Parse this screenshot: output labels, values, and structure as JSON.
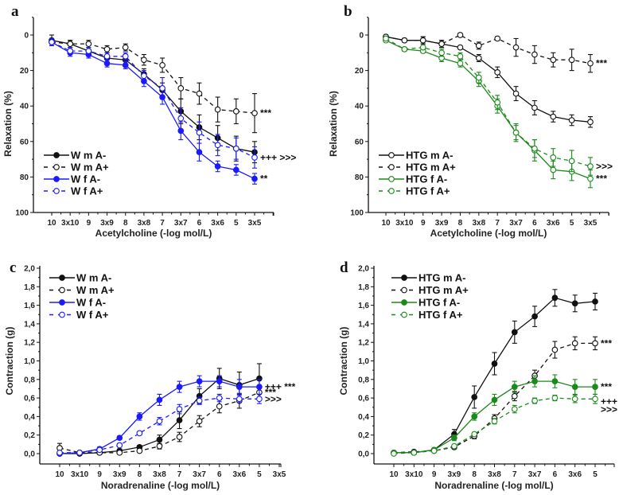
{
  "colors": {
    "black": "#111111",
    "blue": "#1a1aff",
    "green": "#1a8a1a"
  },
  "chart_data": [
    {
      "panel": "a",
      "type": "line",
      "xlabel": "Acetylcholine (-log mol/L)",
      "ylabel": "Relaxation (%)",
      "y_inverted": true,
      "ylim": [
        0,
        100
      ],
      "yticks": [
        "0",
        "20",
        "40",
        "60",
        "80",
        "100"
      ],
      "ytick_values": [
        0,
        20,
        40,
        60,
        80,
        100
      ],
      "categories": [
        "10",
        "3x10",
        "9",
        "3x9",
        "8",
        "3x8",
        "7",
        "3x7",
        "6",
        "3x6",
        "5",
        "3x5"
      ],
      "legend_position": "bottom-left",
      "series": [
        {
          "name": "W m A-",
          "color": "black",
          "dashed": false,
          "filled": true,
          "values": [
            3,
            5,
            9,
            13,
            14,
            22,
            31,
            43,
            52,
            58,
            64,
            66
          ],
          "errors": [
            3,
            2,
            2,
            3,
            3,
            3,
            4,
            7,
            7,
            7,
            7,
            6
          ]
        },
        {
          "name": "W m A+",
          "color": "black",
          "dashed": true,
          "filled": false,
          "values": [
            4,
            5,
            5,
            8,
            7,
            14,
            17,
            30,
            33,
            42,
            43,
            44
          ],
          "errors": [
            2,
            2,
            2,
            2,
            2,
            3,
            4,
            6,
            6,
            7,
            7,
            11
          ]
        },
        {
          "name": "W f A-",
          "color": "blue",
          "dashed": false,
          "filled": true,
          "values": [
            4,
            10,
            11,
            16,
            17,
            26,
            35,
            54,
            66,
            74,
            76,
            81
          ],
          "errors": [
            2,
            2,
            2,
            2,
            2,
            3,
            4,
            5,
            5,
            3,
            3,
            3
          ]
        },
        {
          "name": "W f A+",
          "color": "blue",
          "dashed": true,
          "filled": false,
          "values": [
            4,
            9,
            9,
            12,
            12,
            23,
            30,
            47,
            55,
            62,
            64,
            69
          ],
          "errors": [
            2,
            2,
            2,
            2,
            2,
            3,
            6,
            6,
            6,
            6,
            6,
            6
          ]
        }
      ],
      "annotations": [
        {
          "series": 1,
          "text": "***"
        },
        {
          "series": 0,
          "text": "+++ >>>",
          "dy": 7
        },
        {
          "series": 2,
          "text": "**"
        }
      ]
    },
    {
      "panel": "b",
      "type": "line",
      "xlabel": "Acetylcholine (-log mol/L)",
      "ylabel": "Relaxation (%)",
      "y_inverted": true,
      "ylim": [
        0,
        100
      ],
      "yticks": [
        "0",
        "20",
        "40",
        "60",
        "80",
        "100"
      ],
      "ytick_values": [
        0,
        20,
        40,
        60,
        80,
        100
      ],
      "categories": [
        "10",
        "3x10",
        "9",
        "3x9",
        "8",
        "3x8",
        "7",
        "3x7",
        "6",
        "3x6",
        "5",
        "3x5"
      ],
      "legend_position": "bottom-left",
      "series": [
        {
          "name": "HTG m A-",
          "color": "black",
          "dashed": false,
          "filled": false,
          "values": [
            1,
            3,
            3,
            5,
            7,
            13,
            21,
            33,
            41,
            46,
            48,
            49
          ],
          "errors": [
            1,
            1,
            2,
            2,
            1,
            2,
            3,
            4,
            4,
            3,
            3,
            3
          ]
        },
        {
          "name": "HTG m A+",
          "color": "black",
          "dashed": true,
          "filled": false,
          "values": [
            1,
            3,
            3,
            5,
            0,
            6,
            2,
            7,
            11,
            14,
            14,
            16
          ],
          "errors": [
            1,
            1,
            2,
            2,
            1,
            2,
            1,
            5,
            5,
            4,
            6,
            5
          ]
        },
        {
          "name": "HTG f A-",
          "color": "green",
          "dashed": false,
          "filled": false,
          "values": [
            3,
            8,
            9,
            13,
            16,
            26,
            40,
            55,
            65,
            76,
            77,
            81
          ],
          "errors": [
            1,
            1,
            1,
            2,
            2,
            3,
            4,
            5,
            6,
            5,
            5,
            5
          ]
        },
        {
          "name": "HTG f A+",
          "color": "green",
          "dashed": true,
          "filled": false,
          "values": [
            2,
            8,
            7,
            10,
            12,
            24,
            38,
            55,
            64,
            69,
            71,
            74
          ],
          "errors": [
            1,
            1,
            1,
            2,
            2,
            3,
            4,
            4,
            5,
            5,
            6,
            5
          ]
        }
      ],
      "annotations": [
        {
          "series": 1,
          "text": "***"
        },
        {
          "series": 3,
          "text": ">>>"
        },
        {
          "series": 2,
          "text": "***",
          "small": true
        }
      ]
    },
    {
      "panel": "c",
      "type": "line",
      "xlabel": "Noradrenaline (-log mol/L)",
      "ylabel": "Contraction (g)",
      "y_inverted": false,
      "ylim": [
        0,
        2.0
      ],
      "yticks": [
        "0,0",
        "0,2",
        "0,4",
        "0,6",
        "0,8",
        "1,0",
        "1,2",
        "1,4",
        "1,6",
        "1,8",
        "2,0"
      ],
      "ytick_values": [
        0,
        0.2,
        0.4,
        0.6,
        0.8,
        1.0,
        1.2,
        1.4,
        1.6,
        1.8,
        2.0
      ],
      "categories": [
        "10",
        "3x10",
        "9",
        "3x9",
        "8",
        "3x8",
        "7",
        "3x7",
        "6",
        "3x6",
        "5",
        "3x5"
      ],
      "legend_position": "top-left",
      "series": [
        {
          "name": "W m A-",
          "color": "black",
          "dashed": false,
          "filled": true,
          "values": [
            0.0,
            0.0,
            0.01,
            0.03,
            0.07,
            0.15,
            0.36,
            0.62,
            0.81,
            0.74,
            0.81,
            null
          ],
          "errors": [
            0.01,
            0.01,
            0.01,
            0.02,
            0.02,
            0.05,
            0.09,
            0.08,
            0.11,
            0.14,
            0.16,
            null
          ]
        },
        {
          "name": "W m A+",
          "color": "black",
          "dashed": true,
          "filled": false,
          "values": [
            0.06,
            0.01,
            0.01,
            0.01,
            0.03,
            0.08,
            0.18,
            0.35,
            0.51,
            0.57,
            0.66,
            null
          ],
          "errors": [
            0.05,
            0.01,
            0.01,
            0.01,
            0.01,
            0.03,
            0.05,
            0.06,
            0.07,
            0.08,
            0.07,
            null
          ]
        },
        {
          "name": "W f A-",
          "color": "blue",
          "dashed": false,
          "filled": true,
          "values": [
            0.0,
            0.01,
            0.05,
            0.17,
            0.4,
            0.58,
            0.72,
            0.78,
            0.78,
            0.72,
            0.72,
            null
          ],
          "errors": [
            0.01,
            0.01,
            0.02,
            0.02,
            0.04,
            0.06,
            0.06,
            0.06,
            0.06,
            0.08,
            0.08,
            null
          ]
        },
        {
          "name": "W f A+",
          "color": "blue",
          "dashed": true,
          "filled": false,
          "values": [
            0.01,
            0.01,
            0.04,
            0.09,
            0.22,
            0.35,
            0.48,
            0.57,
            0.6,
            0.59,
            0.59,
            null
          ],
          "errors": [
            0.01,
            0.01,
            0.01,
            0.02,
            0.02,
            0.04,
            0.05,
            0.04,
            0.04,
            0.04,
            0.05,
            null
          ]
        }
      ],
      "annotations": [
        {
          "series": 2,
          "text": "+++ ***"
        },
        {
          "series": 1,
          "text": "***"
        },
        {
          "series": 3,
          "text": ">>>"
        }
      ]
    },
    {
      "panel": "d",
      "type": "line",
      "xlabel": "Noradrenaline (-log mol/L)",
      "ylabel": "Contraction (g)",
      "y_inverted": false,
      "ylim": [
        0,
        2.0
      ],
      "yticks": [
        "0,0",
        "0,2",
        "0,4",
        "0,6",
        "0,8",
        "1,0",
        "1,2",
        "1,4",
        "1,6",
        "1,8",
        "2,0"
      ],
      "ytick_values": [
        0,
        0.2,
        0.4,
        0.6,
        0.8,
        1.0,
        1.2,
        1.4,
        1.6,
        1.8,
        2.0
      ],
      "categories": [
        "10",
        "3x10",
        "9",
        "3x9",
        "8",
        "3x8",
        "7",
        "3x7",
        "6",
        "3x6",
        "5"
      ],
      "legend_position": "top-left",
      "series": [
        {
          "name": "HTG m A-",
          "color": "black",
          "dashed": false,
          "filled": true,
          "values": [
            0.01,
            0.01,
            0.04,
            0.21,
            0.61,
            0.97,
            1.31,
            1.48,
            1.68,
            1.62,
            1.64
          ],
          "errors": [
            0.01,
            0.01,
            0.01,
            0.05,
            0.12,
            0.12,
            0.12,
            0.11,
            0.09,
            0.09,
            0.09
          ]
        },
        {
          "name": "HTG m A+",
          "color": "black",
          "dashed": true,
          "filled": false,
          "values": [
            0.01,
            0.02,
            0.03,
            0.07,
            0.19,
            0.38,
            0.62,
            0.84,
            1.12,
            1.19,
            1.19
          ],
          "errors": [
            0.01,
            0.01,
            0.01,
            0.02,
            0.03,
            0.04,
            0.05,
            0.06,
            0.09,
            0.07,
            0.07
          ]
        },
        {
          "name": "HTG f A-",
          "color": "green",
          "dashed": false,
          "filled": true,
          "values": [
            0.01,
            0.01,
            0.04,
            0.17,
            0.4,
            0.58,
            0.72,
            0.78,
            0.78,
            0.72,
            0.72
          ],
          "errors": [
            0.01,
            0.01,
            0.01,
            0.03,
            0.04,
            0.06,
            0.06,
            0.06,
            0.07,
            0.08,
            0.08
          ]
        },
        {
          "name": "HTG f A+",
          "color": "green",
          "dashed": true,
          "filled": false,
          "values": [
            0.0,
            0.01,
            0.03,
            0.08,
            0.21,
            0.35,
            0.48,
            0.57,
            0.6,
            0.59,
            0.59
          ],
          "errors": [
            0.01,
            0.01,
            0.01,
            0.02,
            0.02,
            0.03,
            0.04,
            0.03,
            0.03,
            0.04,
            0.05
          ]
        }
      ],
      "annotations": [
        {
          "series": 1,
          "text": "***"
        },
        {
          "series": 2,
          "text": "***"
        },
        {
          "series": 3,
          "text": "+++",
          "dy": 3
        },
        {
          "series": 3,
          "text": ">>>",
          "dy": 13
        }
      ]
    }
  ]
}
